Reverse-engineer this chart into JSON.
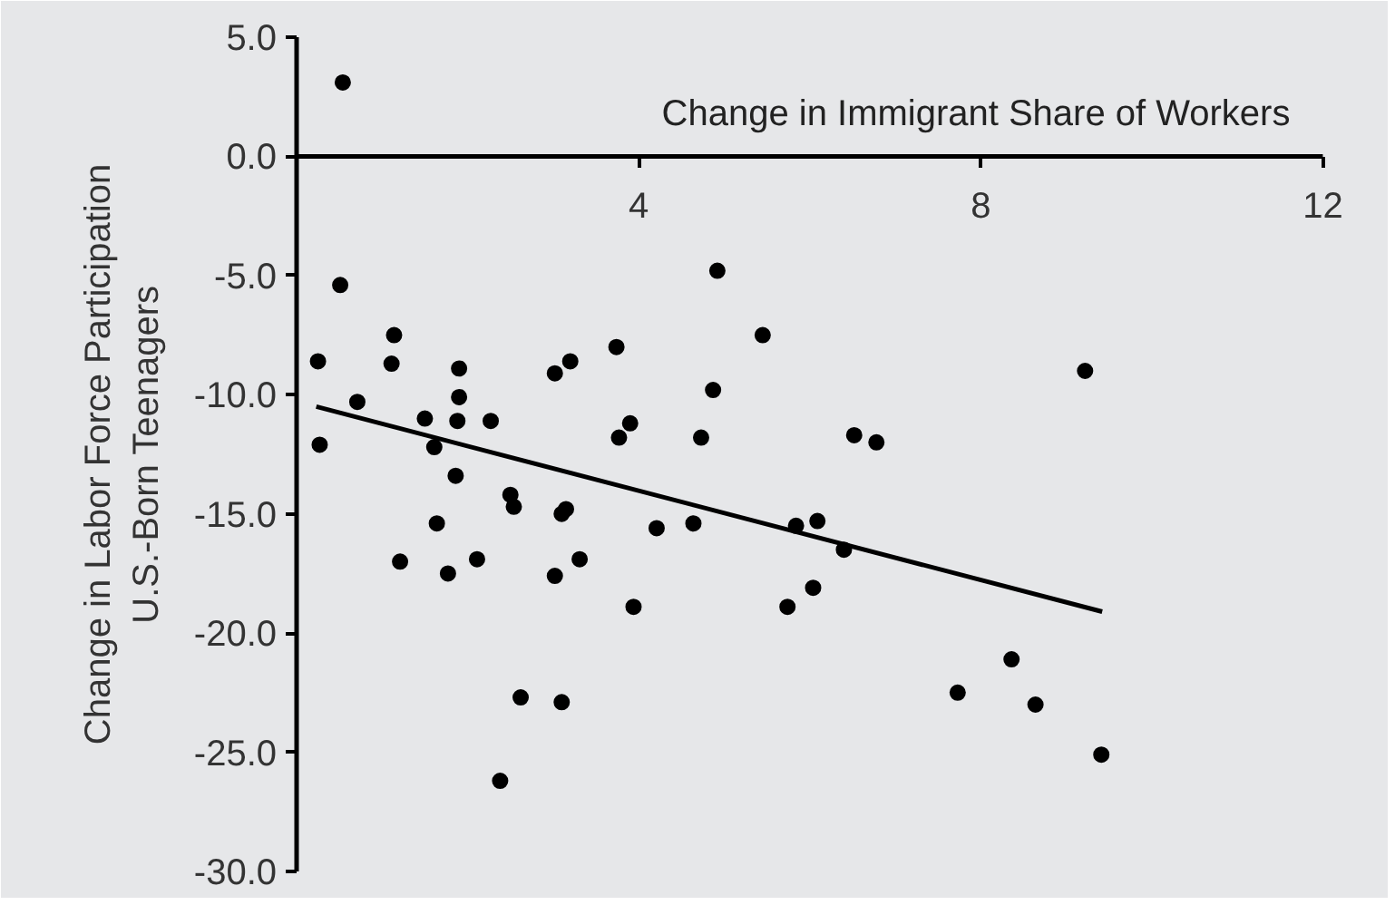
{
  "chart_data": {
    "type": "scatter",
    "xlabel": "Change in Immigrant Share of Workers",
    "ylabel": "Change in Labor Force Participation\nU.S.-Born Teenagers",
    "xlim": [
      0,
      12
    ],
    "ylim": [
      -30,
      5
    ],
    "xticks": [
      4,
      8,
      12
    ],
    "yticks": [
      {
        "value": 5,
        "label": "5.0"
      },
      {
        "value": 0,
        "label": "0.0"
      },
      {
        "value": -5,
        "label": "-5.0"
      },
      {
        "value": -10,
        "label": "-10.0"
      },
      {
        "value": -15,
        "label": "-15.0"
      },
      {
        "value": -20,
        "label": "-20.0"
      },
      {
        "value": -25,
        "label": "-25.0"
      },
      {
        "value": -30,
        "label": "-30.0"
      }
    ],
    "grid": false,
    "series": [
      {
        "marker": "circle",
        "color": "#000000",
        "x": [
          0.54,
          0.51,
          1.14,
          0.25,
          1.11,
          1.9,
          3.02,
          3.2,
          3.74,
          4.92,
          5.45,
          4.87,
          0.71,
          1.9,
          1.5,
          1.88,
          2.27,
          3.9,
          3.77,
          4.73,
          0.27,
          1.61,
          9.22,
          6.52,
          6.78,
          1.86,
          2.5,
          2.54,
          3.15,
          3.1,
          1.64,
          4.21,
          4.64,
          5.84,
          6.09,
          1.21,
          1.77,
          2.11,
          3.02,
          3.31,
          3.94,
          5.74,
          6.04,
          2.62,
          3.1,
          2.38,
          6.4,
          8.36,
          7.73,
          8.64,
          9.41
        ],
        "values": [
          3.1,
          -5.4,
          -7.5,
          -8.6,
          -8.7,
          -8.9,
          -9.1,
          -8.6,
          -8.0,
          -4.8,
          -7.5,
          -9.8,
          -10.3,
          -10.1,
          -11.0,
          -11.1,
          -11.1,
          -11.2,
          -11.8,
          -11.8,
          -12.1,
          -12.2,
          -9.0,
          -11.7,
          -12.0,
          -13.4,
          -14.2,
          -14.7,
          -14.8,
          -15.0,
          -15.4,
          -15.6,
          -15.4,
          -15.5,
          -15.3,
          -17.0,
          -17.5,
          -16.9,
          -17.6,
          -16.9,
          -18.9,
          -18.9,
          -18.1,
          -22.7,
          -22.9,
          -26.2,
          -16.5,
          -21.1,
          -22.5,
          -23.0,
          -25.1
        ]
      },
      {
        "type": "line",
        "color": "#000000",
        "marker": "none",
        "line_style": "solid",
        "x": [
          0.23,
          9.42
        ],
        "values": [
          -10.5,
          -19.1
        ]
      }
    ]
  }
}
